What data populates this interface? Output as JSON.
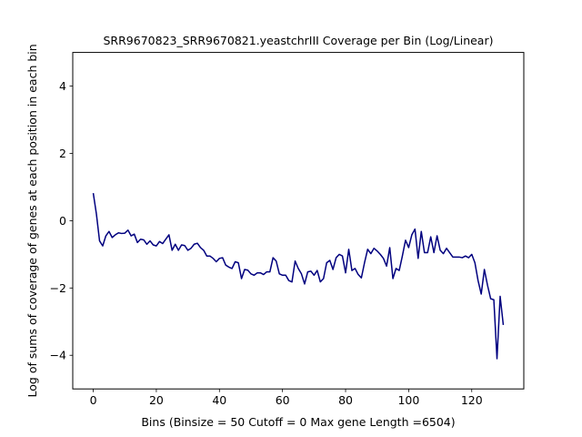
{
  "chart_data": {
    "type": "line",
    "title": "SRR9670823_SRR9670821.yeastchrIII Coverage per Bin (Log/Linear)",
    "xlabel": "Bins  (Binsize = 50 Cutoff = 0 Max gene Length =6504)",
    "ylabel": "Log of sums of coverage of genes at each position in each bin",
    "xlim": [
      -6.5,
      136.5
    ],
    "ylim": [
      -5,
      5
    ],
    "xticks": [
      0,
      20,
      40,
      60,
      80,
      100,
      120
    ],
    "yticks": [
      -4,
      -2,
      0,
      2,
      4
    ],
    "grid": false,
    "line_color": "#00007f",
    "series": [
      {
        "x": [
          0,
          1,
          2,
          3,
          4,
          5,
          6,
          7,
          8,
          9,
          10,
          11,
          12,
          13,
          14,
          15,
          16,
          17,
          18,
          19,
          20,
          21,
          22,
          23,
          24,
          25,
          26,
          27,
          28,
          29,
          30,
          31,
          32,
          33,
          34,
          35,
          36,
          37,
          38,
          39,
          40,
          41,
          42,
          43,
          44,
          45,
          46,
          47,
          48,
          49,
          50,
          51,
          52,
          53,
          54,
          55,
          56,
          57,
          58,
          59,
          60,
          61,
          62,
          63,
          64,
          65,
          66,
          67,
          68,
          69,
          70,
          71,
          72,
          73,
          74,
          75,
          76,
          77,
          78,
          79,
          80,
          81,
          82,
          83,
          84,
          85,
          86,
          87,
          88,
          89,
          90,
          91,
          92,
          93,
          94,
          95,
          96,
          97,
          98,
          99,
          100,
          101,
          102,
          103,
          104,
          105,
          106,
          107,
          108,
          109,
          110,
          111,
          112,
          113,
          114,
          115,
          116,
          117,
          118,
          119,
          120,
          121,
          122,
          123,
          124,
          125,
          126,
          127,
          128,
          129,
          130
        ],
        "values": [
          0.82,
          0.2,
          -0.6,
          -0.75,
          -0.45,
          -0.32,
          -0.5,
          -0.42,
          -0.36,
          -0.38,
          -0.37,
          -0.28,
          -0.45,
          -0.4,
          -0.65,
          -0.55,
          -0.57,
          -0.7,
          -0.6,
          -0.72,
          -0.75,
          -0.62,
          -0.68,
          -0.55,
          -0.42,
          -0.88,
          -0.7,
          -0.88,
          -0.72,
          -0.74,
          -0.88,
          -0.82,
          -0.7,
          -0.67,
          -0.8,
          -0.88,
          -1.05,
          -1.05,
          -1.12,
          -1.22,
          -1.12,
          -1.1,
          -1.32,
          -1.38,
          -1.42,
          -1.22,
          -1.25,
          -1.72,
          -1.45,
          -1.47,
          -1.58,
          -1.62,
          -1.55,
          -1.55,
          -1.6,
          -1.52,
          -1.52,
          -1.1,
          -1.2,
          -1.58,
          -1.62,
          -1.62,
          -1.78,
          -1.82,
          -1.2,
          -1.42,
          -1.58,
          -1.88,
          -1.52,
          -1.5,
          -1.62,
          -1.48,
          -1.82,
          -1.72,
          -1.25,
          -1.18,
          -1.45,
          -1.1,
          -1.0,
          -1.05,
          -1.55,
          -0.85,
          -1.48,
          -1.42,
          -1.6,
          -1.7,
          -1.25,
          -0.85,
          -0.98,
          -0.82,
          -0.9,
          -1.0,
          -1.12,
          -1.35,
          -0.8,
          -1.72,
          -1.42,
          -1.48,
          -1.05,
          -0.58,
          -0.8,
          -0.42,
          -0.25,
          -1.12,
          -0.32,
          -0.95,
          -0.95,
          -0.48,
          -0.95,
          -0.45,
          -0.88,
          -0.98,
          -0.82,
          -0.95,
          -1.08,
          -1.08,
          -1.08,
          -1.1,
          -1.05,
          -1.1,
          -1.0,
          -1.25,
          -1.78,
          -2.18,
          -1.45,
          -1.92,
          -2.32,
          -2.35,
          -4.1,
          -2.25,
          -3.1
        ]
      }
    ]
  }
}
